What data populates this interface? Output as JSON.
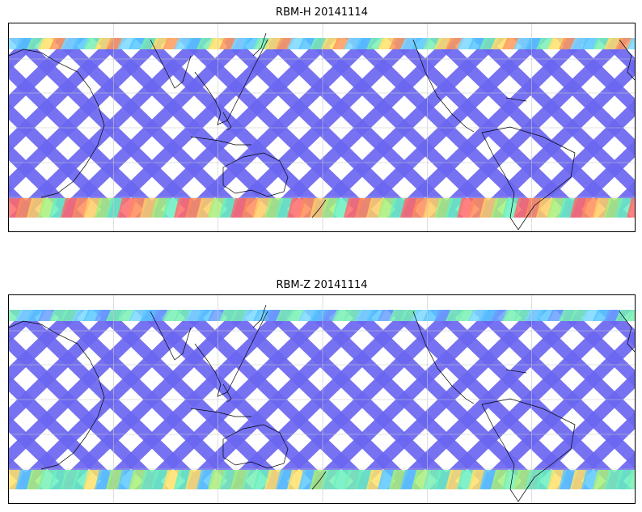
{
  "panels": [
    {
      "title": "RBM-H 20141114",
      "colors": {
        "base": "#6a66f0",
        "north_band": [
          "#7ad8ff",
          "#56c7ff",
          "#78f0b5",
          "#ffe26a",
          "#ff9a5c",
          "#ff6a6a"
        ],
        "south_band": [
          "#ff6a6a",
          "#ff8c5a",
          "#ffcc66",
          "#a8f07a",
          "#6af0c0",
          "#5ac8ff"
        ]
      }
    },
    {
      "title": "RBM-Z 20141114",
      "colors": {
        "base": "#6a66f0",
        "north_band": [
          "#6aa0ff",
          "#5ac8ff",
          "#7ad8ff",
          "#78f0b5"
        ],
        "south_band": [
          "#5ac8ff",
          "#6af0c0",
          "#a8f07a",
          "#ffe26a",
          "#78f0b5"
        ]
      }
    }
  ],
  "map": {
    "gridline_color": "#c8c8c8",
    "coastline_color": "#000000",
    "land": "coastlines only"
  }
}
